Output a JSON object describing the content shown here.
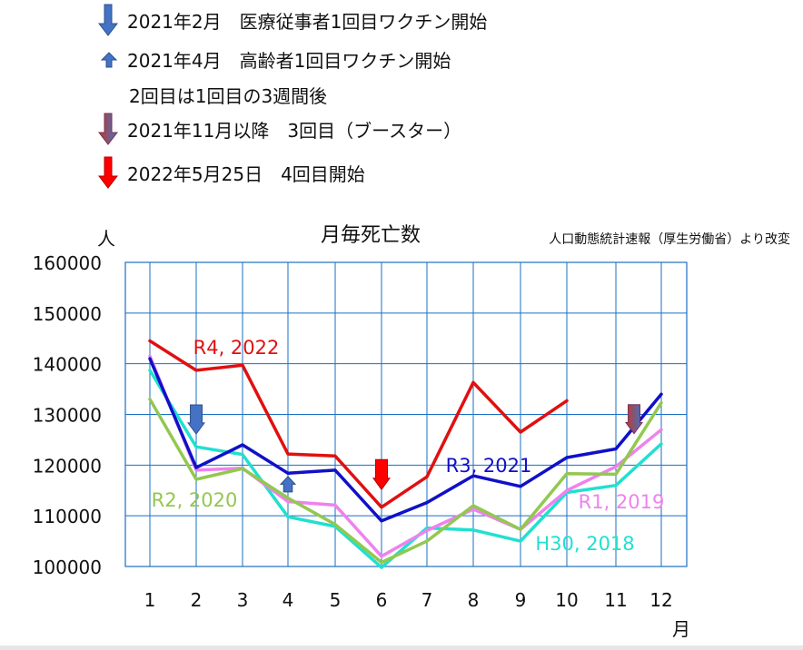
{
  "legend_notes": [
    {
      "icon": "blue-down-arrow-icon",
      "text": "2021年2月　医療従事者1回目ワクチン開始"
    },
    {
      "icon": "blue-up-arrow-icon",
      "text": "2021年4月　高齢者1回目ワクチン開始"
    },
    {
      "icon": "",
      "text": "2回目は1回目の3週間後"
    },
    {
      "icon": "red-blue-down-arrow-icon",
      "text": "2021年11月以降　3回目（ブースター）"
    },
    {
      "icon": "red-down-arrow-icon",
      "text": "2022年5月25日　4回目開始"
    }
  ],
  "colors": {
    "R4": "#e01010",
    "R3": "#1010c8",
    "R2": "#92c850",
    "R1": "#ee82ee",
    "H30": "#20e0d0",
    "grid": "#1a6fc4",
    "arrow_blue": "#4472c4",
    "arrow_red": "#ff0000"
  },
  "chart_data": {
    "type": "line",
    "title": "月毎死亡数",
    "source": "人口動態統計速報（厚生労働省）より改変",
    "ylabel": "人",
    "xlabel": "月",
    "ylim": [
      100000,
      160000
    ],
    "yticks": [
      "100000",
      "110000",
      "120000",
      "130000",
      "140000",
      "150000",
      "160000"
    ],
    "categories": [
      "1",
      "2",
      "3",
      "4",
      "5",
      "6",
      "7",
      "8",
      "9",
      "10",
      "11",
      "12"
    ],
    "series": [
      {
        "key": "R4",
        "name": "R4, 2022",
        "values": [
          144500,
          138700,
          139700,
          122200,
          121800,
          111700,
          117700,
          136300,
          126500,
          132700,
          null,
          null
        ]
      },
      {
        "key": "R3",
        "name": "R3, 2021",
        "values": [
          141000,
          119500,
          124000,
          118400,
          119000,
          109000,
          112600,
          117900,
          115800,
          121500,
          123200,
          134000
        ]
      },
      {
        "key": "R2",
        "name": "R2, 2020",
        "values": [
          133000,
          117200,
          119300,
          113500,
          108300,
          100800,
          105000,
          112000,
          107300,
          118300,
          118200,
          132300
        ]
      },
      {
        "key": "R1",
        "name": "R1, 2019",
        "values": [
          141500,
          119000,
          119400,
          112800,
          112100,
          102000,
          107100,
          111300,
          107300,
          115000,
          119700,
          127000
        ]
      },
      {
        "key": "H30",
        "name": "H30, 2018",
        "values": [
          138700,
          123600,
          122100,
          109800,
          107900,
          99800,
          107600,
          107200,
          105000,
          114600,
          116000,
          124200
        ]
      }
    ],
    "annotations": [
      {
        "month": 2,
        "value": 126500,
        "type": "blue-down"
      },
      {
        "month": 4,
        "value": 116500,
        "type": "blue-up"
      },
      {
        "month": 6,
        "value": 117500,
        "type": "red-down"
      },
      {
        "month": 11.4,
        "value": 130500,
        "type": "red-blue-down"
      }
    ]
  }
}
